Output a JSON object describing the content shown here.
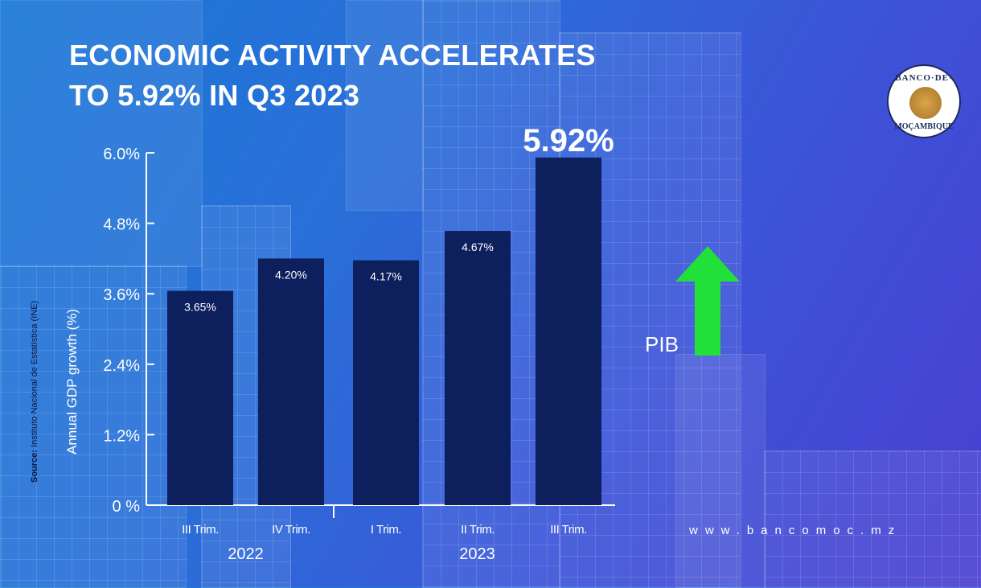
{
  "title": {
    "line1": "ECONOMIC ACTIVITY ACCELERATES",
    "line2": "TO 5.92% IN Q3 2023"
  },
  "source": {
    "prefix": "Source:",
    "text": " Instituto Nacional de Estatística (INE)"
  },
  "logo": {
    "top_text": "BANCO·DE·",
    "bottom_text": "MOÇAMBIQUE",
    "icon": "bank-emblem-icon"
  },
  "pib": {
    "label": "PIB",
    "icon": "up-arrow-icon",
    "color": "#22e03a"
  },
  "website": "www.bancomoc.mz",
  "colors": {
    "bar": "#0d1f5c",
    "axis": "#ffffff",
    "text": "#ffffff"
  },
  "chart_data": {
    "type": "bar",
    "title": "ECONOMIC ACTIVITY ACCELERATES TO 5.92% IN Q3 2023",
    "ylabel": "Annual GDP growth (%)",
    "xlabel": "",
    "ylim": [
      0,
      6.0
    ],
    "yticks": [
      0,
      1.2,
      2.4,
      3.6,
      4.8,
      6.0
    ],
    "ytick_labels": [
      "0 %",
      "1.2%",
      "2.4%",
      "3.6%",
      "4.8%",
      "6.0%"
    ],
    "categories": [
      "III Trim.",
      "IV Trim.",
      "I Trim.",
      "II Trim.",
      "III Trim."
    ],
    "groups": [
      {
        "label": "2022",
        "count": 2
      },
      {
        "label": "2023",
        "count": 3
      }
    ],
    "values": [
      3.65,
      4.2,
      4.17,
      4.67,
      5.92
    ],
    "data_labels": [
      "3.65%",
      "4.20%",
      "4.17%",
      "4.67%",
      "5.92%"
    ],
    "highlight_last": true,
    "grid": false
  }
}
